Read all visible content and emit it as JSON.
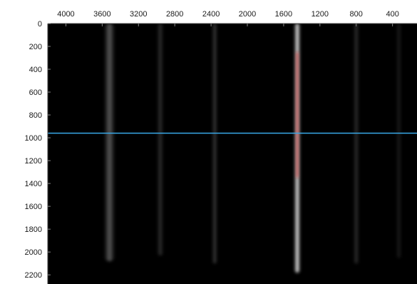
{
  "chart_data": {
    "type": "heatmap",
    "title": "",
    "xlabel": "",
    "ylabel": "",
    "x_axis_position": "top",
    "x_reversed": true,
    "xlim": [
      4200,
      130
    ],
    "ylim": [
      0,
      2280
    ],
    "x_ticks": [
      4000,
      3600,
      3200,
      2800,
      2400,
      2000,
      1600,
      1200,
      800,
      400
    ],
    "y_ticks": [
      0,
      200,
      400,
      600,
      800,
      1000,
      1200,
      1400,
      1600,
      1800,
      2000,
      2200
    ],
    "x_tick_labels": [
      "4000",
      "3600",
      "3200",
      "2800",
      "2400",
      "2000",
      "1600",
      "1200",
      "800",
      "400"
    ],
    "y_tick_labels": [
      "0",
      "200",
      "400",
      "600",
      "800",
      "1000",
      "1200",
      "1400",
      "1600",
      "1800",
      "2000",
      "2200"
    ],
    "background_color": "#000000",
    "bands": [
      {
        "x": 3520,
        "width": 120,
        "y_start": 0,
        "y_end": 2080,
        "peak_intensity": 0.36,
        "color": "#ffffff"
      },
      {
        "x": 2960,
        "width": 70,
        "y_start": 0,
        "y_end": 2030,
        "peak_intensity": 0.2,
        "color": "#ffffff"
      },
      {
        "x": 2360,
        "width": 55,
        "y_start": 0,
        "y_end": 2100,
        "peak_intensity": 0.26,
        "color": "#ffffff"
      },
      {
        "x": 1450,
        "width": 70,
        "y_start": 0,
        "y_end": 2180,
        "peak_intensity": 1.0,
        "color": "#ffffff"
      },
      {
        "x": 1450,
        "width": 35,
        "y_start": 250,
        "y_end": 1350,
        "peak_intensity": 0.9,
        "color": "#e02020"
      },
      {
        "x": 800,
        "width": 60,
        "y_start": 0,
        "y_end": 2100,
        "peak_intensity": 0.2,
        "color": "#ffffff"
      },
      {
        "x": 330,
        "width": 50,
        "y_start": 0,
        "y_end": 2050,
        "peak_intensity": 0.14,
        "color": "#ffffff"
      }
    ],
    "cursor_line": {
      "y": 960,
      "color": "#39a9e8"
    }
  }
}
